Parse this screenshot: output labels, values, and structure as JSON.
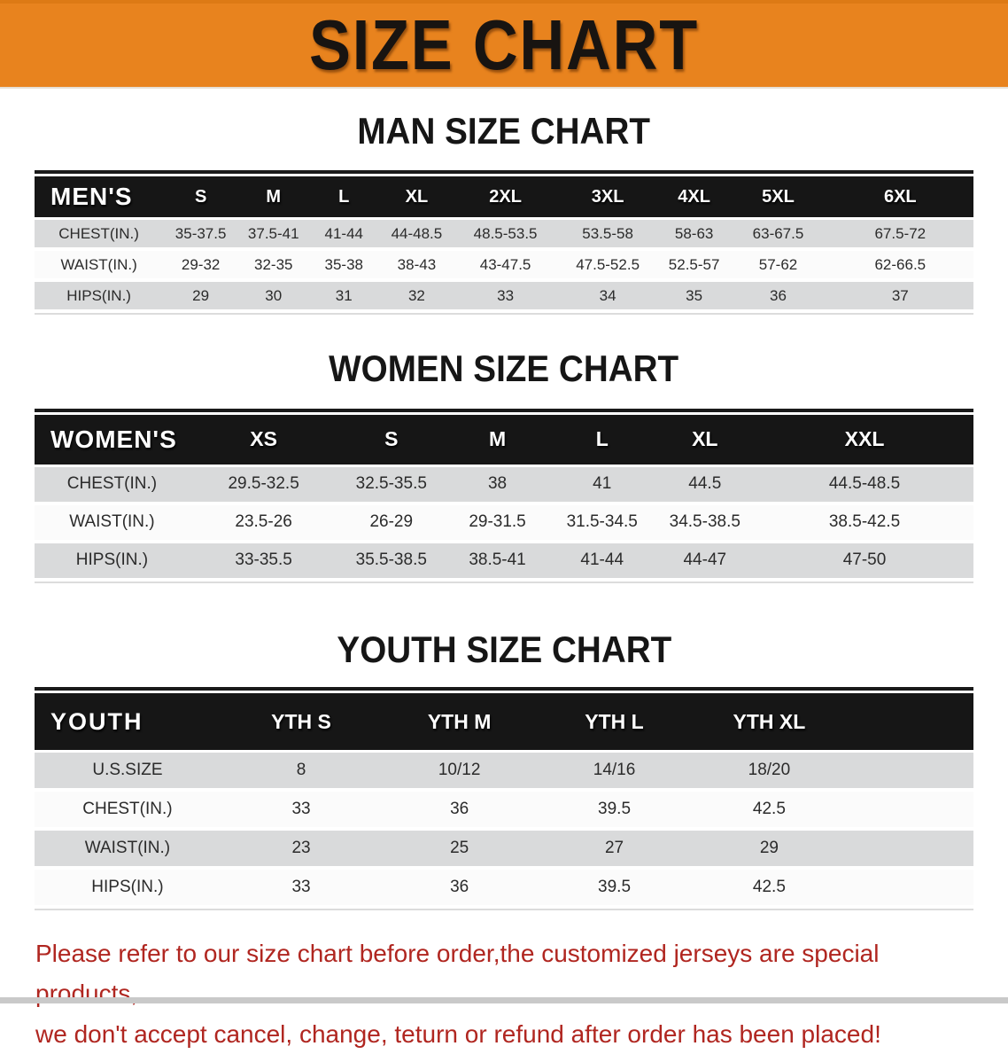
{
  "banner": {
    "title": "SIZE CHART"
  },
  "colors": {
    "banner_bg": "#E8831E",
    "header_bar": "#161616",
    "row_shade": "#d9dadb",
    "note_red": "#B02620"
  },
  "men": {
    "heading": "MAN SIZE CHART",
    "corner": "MEN'S",
    "sizes": [
      "S",
      "M",
      "L",
      "XL",
      "2XL",
      "3XL",
      "4XL",
      "5XL",
      "6XL"
    ],
    "rows": [
      {
        "label": "CHEST(IN.)",
        "values": [
          "35-37.5",
          "37.5-41",
          "41-44",
          "44-48.5",
          "48.5-53.5",
          "53.5-58",
          "58-63",
          "63-67.5",
          "67.5-72"
        ]
      },
      {
        "label": "WAIST(IN.)",
        "values": [
          "29-32",
          "32-35",
          "35-38",
          "38-43",
          "43-47.5",
          "47.5-52.5",
          "52.5-57",
          "57-62",
          "62-66.5"
        ]
      },
      {
        "label": "HIPS(IN.)",
        "values": [
          "29",
          "30",
          "31",
          "32",
          "33",
          "34",
          "35",
          "36",
          "37"
        ]
      }
    ]
  },
  "women": {
    "heading": "WOMEN SIZE CHART",
    "corner": "WOMEN'S",
    "sizes": [
      "XS",
      "S",
      "M",
      "L",
      "XL",
      "XXL"
    ],
    "rows": [
      {
        "label": "CHEST(IN.)",
        "values": [
          "29.5-32.5",
          "32.5-35.5",
          "38",
          "41",
          "44.5",
          "44.5-48.5"
        ]
      },
      {
        "label": "WAIST(IN.)",
        "values": [
          "23.5-26",
          "26-29",
          "29-31.5",
          "31.5-34.5",
          "34.5-38.5",
          "38.5-42.5"
        ]
      },
      {
        "label": "HIPS(IN.)",
        "values": [
          "33-35.5",
          "35.5-38.5",
          "38.5-41",
          "41-44",
          "44-47",
          "47-50"
        ]
      }
    ]
  },
  "youth": {
    "heading": "YOUTH SIZE CHART",
    "corner": "YOUTH",
    "sizes": [
      "YTH S",
      "YTH M",
      "YTH L",
      "YTH XL"
    ],
    "rows": [
      {
        "label": "U.S.SIZE",
        "values": [
          "8",
          "10/12",
          "14/16",
          "18/20"
        ]
      },
      {
        "label": "CHEST(IN.)",
        "values": [
          "33",
          "36",
          "39.5",
          "42.5"
        ]
      },
      {
        "label": "WAIST(IN.)",
        "values": [
          "23",
          "25",
          "27",
          "29"
        ]
      },
      {
        "label": "HIPS(IN.)",
        "values": [
          "33",
          "36",
          "39.5",
          "42.5"
        ]
      }
    ]
  },
  "footer": {
    "line1": "Please refer to our size chart before order,the customized jerseys are special products,",
    "line2": "we don't accept cancel, change, teturn or refund after order has been placed!"
  }
}
